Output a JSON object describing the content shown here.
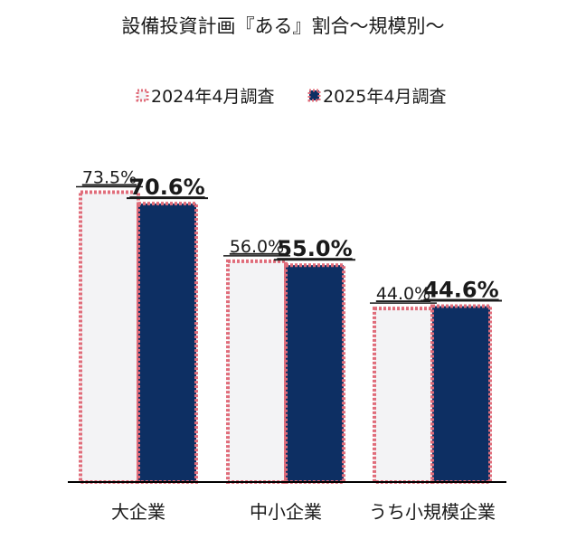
{
  "chart_data": {
    "type": "bar",
    "title": "設備投資計画『ある』割合～規模別～",
    "categories": [
      "大企業",
      "中小企業",
      "うち小規模企業"
    ],
    "series": [
      {
        "name": "2024年4月調査",
        "values": [
          73.5,
          56.0,
          44.0
        ],
        "labels": [
          "73.5%",
          "56.0%",
          "44.0%"
        ]
      },
      {
        "name": "2025年4月調査",
        "values": [
          70.6,
          55.0,
          44.6
        ],
        "labels": [
          "70.6%",
          "55.0%",
          "44.6%"
        ]
      }
    ],
    "ylim": [
      0,
      100
    ],
    "grid": false,
    "legend_position": "top",
    "colors": {
      "series_2024_fill": "#f3f3f5",
      "series_2024_border": "#e06c7a",
      "series_2025_fill": "#0d2f63",
      "series_2025_border": "#e06c7a",
      "baseline": "#000000",
      "text": "#1a1a1a"
    }
  }
}
